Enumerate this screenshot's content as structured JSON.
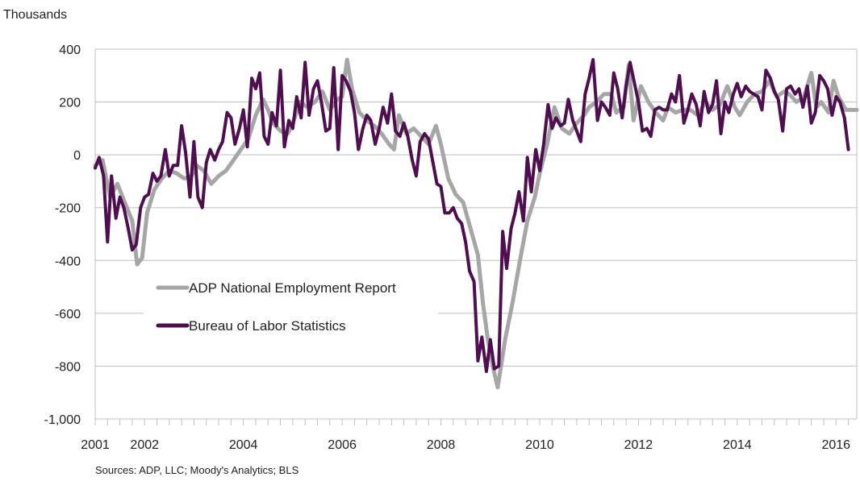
{
  "chart_data": {
    "type": "line",
    "unit_label": "Thousands",
    "source": "Sources: ADP, LLC; Moody's Analytics; BLS",
    "ylim": [
      -1000,
      400
    ],
    "yticks": [
      400,
      200,
      0,
      -200,
      -400,
      -600,
      -800,
      -1000
    ],
    "ytick_labels": [
      "400",
      "200",
      "0",
      "-200",
      "-400",
      "-600",
      "-800",
      "-1,000"
    ],
    "xlim": [
      2001.0,
      2016.42
    ],
    "xticks": [
      2001,
      2002,
      2004,
      2006,
      2008,
      2010,
      2012,
      2014,
      2016
    ],
    "xtick_labels": [
      "2001",
      "2002",
      "2004",
      "2006",
      "2008",
      "2010",
      "2012",
      "2014",
      "2016"
    ],
    "grid": true,
    "legend": "inside-left",
    "series": [
      {
        "name": "ADP National Employment Report",
        "color": "#a6a6a6",
        "points": [
          [
            2001.0,
            -40
          ],
          [
            2001.15,
            -20
          ],
          [
            2001.3,
            -160
          ],
          [
            2001.45,
            -110
          ],
          [
            2001.6,
            -180
          ],
          [
            2001.75,
            -250
          ],
          [
            2001.85,
            -415
          ],
          [
            2001.95,
            -390
          ],
          [
            2002.05,
            -220
          ],
          [
            2002.2,
            -130
          ],
          [
            2002.35,
            -90
          ],
          [
            2002.5,
            -60
          ],
          [
            2002.65,
            -70
          ],
          [
            2002.8,
            -90
          ],
          [
            2002.95,
            -80
          ],
          [
            2003.05,
            -40
          ],
          [
            2003.2,
            -60
          ],
          [
            2003.35,
            -110
          ],
          [
            2003.5,
            -80
          ],
          [
            2003.65,
            -60
          ],
          [
            2003.8,
            -20
          ],
          [
            2003.95,
            20
          ],
          [
            2004.1,
            60
          ],
          [
            2004.25,
            150
          ],
          [
            2004.4,
            210
          ],
          [
            2004.5,
            170
          ],
          [
            2004.6,
            120
          ],
          [
            2004.75,
            90
          ],
          [
            2004.9,
            80
          ],
          [
            2005.0,
            120
          ],
          [
            2005.15,
            200
          ],
          [
            2005.3,
            180
          ],
          [
            2005.45,
            200
          ],
          [
            2005.6,
            240
          ],
          [
            2005.75,
            170
          ],
          [
            2005.9,
            210
          ],
          [
            2006.0,
            220
          ],
          [
            2006.1,
            360
          ],
          [
            2006.2,
            250
          ],
          [
            2006.35,
            160
          ],
          [
            2006.5,
            130
          ],
          [
            2006.65,
            110
          ],
          [
            2006.8,
            80
          ],
          [
            2006.95,
            40
          ],
          [
            2007.05,
            20
          ],
          [
            2007.15,
            150
          ],
          [
            2007.3,
            80
          ],
          [
            2007.45,
            100
          ],
          [
            2007.6,
            70
          ],
          [
            2007.75,
            40
          ],
          [
            2007.9,
            110
          ],
          [
            2008.0,
            40
          ],
          [
            2008.15,
            -90
          ],
          [
            2008.3,
            -150
          ],
          [
            2008.45,
            -180
          ],
          [
            2008.6,
            -280
          ],
          [
            2008.75,
            -380
          ],
          [
            2008.85,
            -560
          ],
          [
            2008.95,
            -700
          ],
          [
            2009.05,
            -800
          ],
          [
            2009.15,
            -880
          ],
          [
            2009.3,
            -700
          ],
          [
            2009.45,
            -560
          ],
          [
            2009.6,
            -400
          ],
          [
            2009.75,
            -250
          ],
          [
            2009.9,
            -160
          ],
          [
            2010.0,
            -70
          ],
          [
            2010.15,
            40
          ],
          [
            2010.3,
            180
          ],
          [
            2010.45,
            100
          ],
          [
            2010.6,
            80
          ],
          [
            2010.75,
            120
          ],
          [
            2010.9,
            150
          ],
          [
            2011.0,
            180
          ],
          [
            2011.15,
            200
          ],
          [
            2011.3,
            230
          ],
          [
            2011.45,
            230
          ],
          [
            2011.55,
            160
          ],
          [
            2011.7,
            180
          ],
          [
            2011.8,
            340
          ],
          [
            2011.9,
            130
          ],
          [
            2012.05,
            260
          ],
          [
            2012.2,
            200
          ],
          [
            2012.35,
            160
          ],
          [
            2012.5,
            130
          ],
          [
            2012.6,
            180
          ],
          [
            2012.75,
            160
          ],
          [
            2012.9,
            170
          ],
          [
            2013.05,
            170
          ],
          [
            2013.2,
            150
          ],
          [
            2013.35,
            200
          ],
          [
            2013.5,
            170
          ],
          [
            2013.65,
            190
          ],
          [
            2013.8,
            260
          ],
          [
            2013.95,
            180
          ],
          [
            2014.05,
            150
          ],
          [
            2014.2,
            200
          ],
          [
            2014.35,
            230
          ],
          [
            2014.5,
            240
          ],
          [
            2014.65,
            280
          ],
          [
            2014.8,
            220
          ],
          [
            2014.95,
            240
          ],
          [
            2015.05,
            230
          ],
          [
            2015.2,
            200
          ],
          [
            2015.35,
            220
          ],
          [
            2015.5,
            310
          ],
          [
            2015.6,
            180
          ],
          [
            2015.7,
            200
          ],
          [
            2015.85,
            160
          ],
          [
            2015.95,
            280
          ],
          [
            2016.05,
            220
          ],
          [
            2016.2,
            170
          ],
          [
            2016.3,
            170
          ],
          [
            2016.42,
            170
          ]
        ]
      },
      {
        "name": "Bureau of Labor Statistics",
        "color": "#4f0e4f",
        "points": [
          [
            2001.0,
            -50
          ],
          [
            2001.08,
            -10
          ],
          [
            2001.17,
            -80
          ],
          [
            2001.25,
            -330
          ],
          [
            2001.33,
            -80
          ],
          [
            2001.42,
            -240
          ],
          [
            2001.5,
            -160
          ],
          [
            2001.58,
            -200
          ],
          [
            2001.67,
            -280
          ],
          [
            2001.75,
            -360
          ],
          [
            2001.83,
            -340
          ],
          [
            2001.92,
            -200
          ],
          [
            2002.0,
            -160
          ],
          [
            2002.08,
            -150
          ],
          [
            2002.17,
            -70
          ],
          [
            2002.25,
            -100
          ],
          [
            2002.33,
            -80
          ],
          [
            2002.42,
            20
          ],
          [
            2002.5,
            -80
          ],
          [
            2002.58,
            -40
          ],
          [
            2002.67,
            -40
          ],
          [
            2002.75,
            110
          ],
          [
            2002.83,
            10
          ],
          [
            2002.92,
            -160
          ],
          [
            2003.0,
            50
          ],
          [
            2003.08,
            -160
          ],
          [
            2003.17,
            -200
          ],
          [
            2003.25,
            -30
          ],
          [
            2003.33,
            20
          ],
          [
            2003.42,
            -20
          ],
          [
            2003.5,
            20
          ],
          [
            2003.58,
            50
          ],
          [
            2003.67,
            160
          ],
          [
            2003.75,
            140
          ],
          [
            2003.83,
            40
          ],
          [
            2003.92,
            100
          ],
          [
            2004.0,
            170
          ],
          [
            2004.08,
            30
          ],
          [
            2004.17,
            290
          ],
          [
            2004.25,
            250
          ],
          [
            2004.33,
            310
          ],
          [
            2004.42,
            70
          ],
          [
            2004.5,
            40
          ],
          [
            2004.58,
            160
          ],
          [
            2004.67,
            110
          ],
          [
            2004.75,
            320
          ],
          [
            2004.83,
            30
          ],
          [
            2004.92,
            130
          ],
          [
            2005.0,
            100
          ],
          [
            2005.08,
            220
          ],
          [
            2005.17,
            140
          ],
          [
            2005.25,
            350
          ],
          [
            2005.33,
            150
          ],
          [
            2005.42,
            250
          ],
          [
            2005.5,
            280
          ],
          [
            2005.58,
            200
          ],
          [
            2005.67,
            90
          ],
          [
            2005.75,
            100
          ],
          [
            2005.83,
            330
          ],
          [
            2005.92,
            20
          ],
          [
            2006.0,
            300
          ],
          [
            2006.08,
            280
          ],
          [
            2006.17,
            240
          ],
          [
            2006.25,
            160
          ],
          [
            2006.33,
            20
          ],
          [
            2006.42,
            100
          ],
          [
            2006.5,
            150
          ],
          [
            2006.58,
            130
          ],
          [
            2006.67,
            40
          ],
          [
            2006.75,
            100
          ],
          [
            2006.83,
            180
          ],
          [
            2006.92,
            120
          ],
          [
            2007.0,
            230
          ],
          [
            2007.08,
            90
          ],
          [
            2007.17,
            70
          ],
          [
            2007.25,
            120
          ],
          [
            2007.33,
            70
          ],
          [
            2007.42,
            -20
          ],
          [
            2007.5,
            -80
          ],
          [
            2007.58,
            50
          ],
          [
            2007.67,
            80
          ],
          [
            2007.75,
            60
          ],
          [
            2007.83,
            -20
          ],
          [
            2007.92,
            -110
          ],
          [
            2008.0,
            -120
          ],
          [
            2008.08,
            -220
          ],
          [
            2008.17,
            -220
          ],
          [
            2008.25,
            -200
          ],
          [
            2008.33,
            -240
          ],
          [
            2008.42,
            -260
          ],
          [
            2008.5,
            -330
          ],
          [
            2008.58,
            -440
          ],
          [
            2008.67,
            -480
          ],
          [
            2008.75,
            -780
          ],
          [
            2008.83,
            -690
          ],
          [
            2008.92,
            -820
          ],
          [
            2009.0,
            -700
          ],
          [
            2009.08,
            -810
          ],
          [
            2009.17,
            -800
          ],
          [
            2009.25,
            -290
          ],
          [
            2009.33,
            -430
          ],
          [
            2009.42,
            -280
          ],
          [
            2009.5,
            -220
          ],
          [
            2009.58,
            -140
          ],
          [
            2009.67,
            -250
          ],
          [
            2009.75,
            -10
          ],
          [
            2009.83,
            -140
          ],
          [
            2009.92,
            20
          ],
          [
            2010.0,
            -60
          ],
          [
            2010.08,
            40
          ],
          [
            2010.17,
            190
          ],
          [
            2010.25,
            100
          ],
          [
            2010.33,
            140
          ],
          [
            2010.42,
            110
          ],
          [
            2010.5,
            120
          ],
          [
            2010.58,
            210
          ],
          [
            2010.67,
            130
          ],
          [
            2010.75,
            90
          ],
          [
            2010.83,
            50
          ],
          [
            2010.92,
            230
          ],
          [
            2011.0,
            290
          ],
          [
            2011.08,
            360
          ],
          [
            2011.17,
            130
          ],
          [
            2011.25,
            200
          ],
          [
            2011.33,
            180
          ],
          [
            2011.42,
            150
          ],
          [
            2011.5,
            310
          ],
          [
            2011.58,
            250
          ],
          [
            2011.67,
            140
          ],
          [
            2011.75,
            260
          ],
          [
            2011.83,
            350
          ],
          [
            2011.92,
            270
          ],
          [
            2012.0,
            200
          ],
          [
            2012.08,
            90
          ],
          [
            2012.17,
            100
          ],
          [
            2012.25,
            70
          ],
          [
            2012.33,
            170
          ],
          [
            2012.42,
            180
          ],
          [
            2012.5,
            170
          ],
          [
            2012.58,
            170
          ],
          [
            2012.67,
            230
          ],
          [
            2012.75,
            200
          ],
          [
            2012.83,
            300
          ],
          [
            2012.92,
            120
          ],
          [
            2013.0,
            170
          ],
          [
            2013.08,
            230
          ],
          [
            2013.17,
            190
          ],
          [
            2013.25,
            110
          ],
          [
            2013.33,
            240
          ],
          [
            2013.42,
            160
          ],
          [
            2013.5,
            190
          ],
          [
            2013.58,
            280
          ],
          [
            2013.67,
            80
          ],
          [
            2013.75,
            200
          ],
          [
            2013.83,
            160
          ],
          [
            2013.92,
            230
          ],
          [
            2014.0,
            270
          ],
          [
            2014.08,
            220
          ],
          [
            2014.17,
            260
          ],
          [
            2014.25,
            240
          ],
          [
            2014.33,
            230
          ],
          [
            2014.42,
            220
          ],
          [
            2014.5,
            170
          ],
          [
            2014.58,
            320
          ],
          [
            2014.67,
            290
          ],
          [
            2014.75,
            240
          ],
          [
            2014.83,
            210
          ],
          [
            2014.92,
            90
          ],
          [
            2015.0,
            250
          ],
          [
            2015.08,
            260
          ],
          [
            2015.17,
            230
          ],
          [
            2015.25,
            250
          ],
          [
            2015.33,
            180
          ],
          [
            2015.42,
            260
          ],
          [
            2015.5,
            120
          ],
          [
            2015.58,
            160
          ],
          [
            2015.67,
            300
          ],
          [
            2015.75,
            280
          ],
          [
            2015.83,
            250
          ],
          [
            2015.92,
            150
          ],
          [
            2016.0,
            220
          ],
          [
            2016.08,
            200
          ],
          [
            2016.17,
            140
          ],
          [
            2016.25,
            20
          ]
        ]
      }
    ]
  }
}
